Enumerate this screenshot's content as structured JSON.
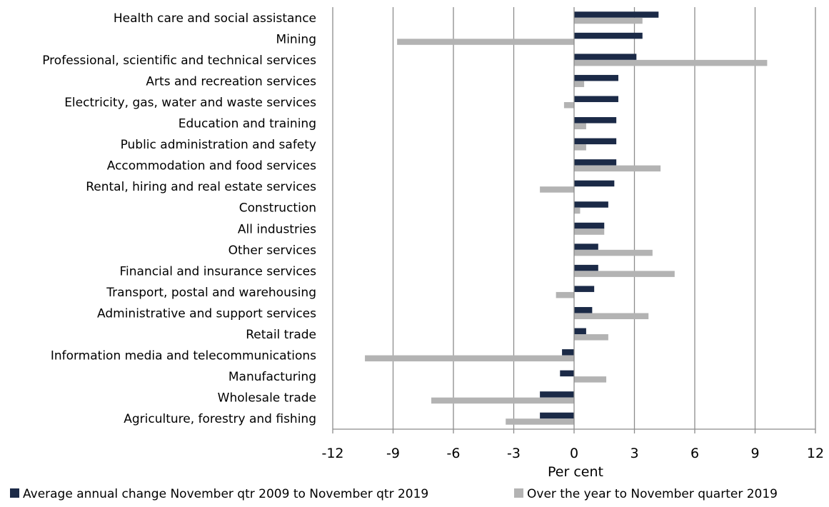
{
  "chart_data": {
    "type": "bar",
    "orientation": "horizontal",
    "categories": [
      "Health care and social assistance",
      "Mining",
      "Professional, scientific and technical services",
      "Arts and recreation services",
      "Electricity, gas, water and waste services",
      "Education and training",
      "Public administration and safety",
      "Accommodation and food services",
      "Rental, hiring and real estate services",
      "Construction",
      "All industries",
      "Other services",
      "Financial and insurance services",
      "Transport, postal and warehousing",
      "Administrative and support services",
      "Retail trade",
      "Information media and telecommunications",
      "Manufacturing",
      "Wholesale trade",
      "Agriculture, forestry and fishing"
    ],
    "series": [
      {
        "name": "Average annual change November qtr 2009 to November qtr 2019",
        "color": "#1b2a47",
        "values": [
          4.2,
          3.4,
          3.1,
          2.2,
          2.2,
          2.1,
          2.1,
          2.1,
          2.0,
          1.7,
          1.5,
          1.2,
          1.2,
          1.0,
          0.9,
          0.6,
          -0.6,
          -0.7,
          -1.7,
          -1.7
        ]
      },
      {
        "name": "Over the year to November quarter 2019",
        "color": "#b3b3b3",
        "values": [
          3.4,
          -8.8,
          9.6,
          0.5,
          -0.5,
          0.6,
          0.6,
          4.3,
          -1.7,
          0.3,
          1.5,
          3.9,
          5.0,
          -0.9,
          3.7,
          1.7,
          -10.4,
          1.6,
          -7.1,
          -3.4
        ]
      }
    ],
    "xlim": [
      -12,
      12
    ],
    "xticks": [
      -12,
      -9,
      -6,
      -3,
      0,
      3,
      6,
      9,
      12
    ],
    "xtick_labels": [
      "-12",
      "-9",
      "-6",
      "-3",
      "0",
      "3",
      "6",
      "9",
      "12"
    ],
    "xlabel": "Per cent",
    "ylabel": "",
    "title": "",
    "grid": true,
    "legend_position": "bottom"
  }
}
